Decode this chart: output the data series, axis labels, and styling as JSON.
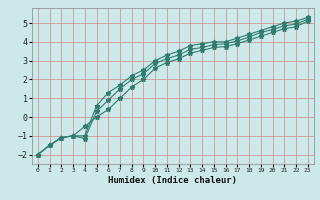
{
  "xlabel": "Humidex (Indice chaleur)",
  "bg_color": "#cce8e8",
  "grid_color": "#aacccc",
  "line_color": "#2e7d6e",
  "xlim": [
    -0.5,
    23.5
  ],
  "ylim": [
    -2.5,
    5.8
  ],
  "xticks": [
    0,
    1,
    2,
    3,
    4,
    5,
    6,
    7,
    8,
    9,
    10,
    11,
    12,
    13,
    14,
    15,
    16,
    17,
    18,
    19,
    20,
    21,
    22,
    23
  ],
  "yticks": [
    -2,
    -1,
    0,
    1,
    2,
    3,
    4,
    5
  ],
  "line1_x": [
    0,
    1,
    2,
    3,
    4,
    5,
    6,
    7,
    8,
    9,
    10,
    11,
    12,
    13,
    14,
    15,
    16,
    17,
    18,
    19,
    20,
    21,
    22,
    23
  ],
  "line1_y": [
    -2.0,
    -1.5,
    -1.1,
    -1.0,
    -1.0,
    0.6,
    1.3,
    1.7,
    2.2,
    2.5,
    3.0,
    3.3,
    3.5,
    3.8,
    3.9,
    4.0,
    4.0,
    4.2,
    4.4,
    4.6,
    4.8,
    5.0,
    5.1,
    5.3
  ],
  "line2_x": [
    0,
    1,
    2,
    3,
    4,
    5,
    6,
    7,
    8,
    9,
    10,
    11,
    12,
    13,
    14,
    15,
    16,
    17,
    18,
    19,
    20,
    21,
    22,
    23
  ],
  "line2_y": [
    -2.0,
    -1.5,
    -1.1,
    -1.0,
    -1.15,
    0.3,
    0.9,
    1.5,
    2.0,
    2.3,
    2.85,
    3.1,
    3.3,
    3.6,
    3.7,
    3.85,
    3.9,
    4.05,
    4.25,
    4.5,
    4.65,
    4.85,
    4.95,
    5.2
  ],
  "line3_x": [
    0,
    1,
    2,
    3,
    4,
    5,
    6,
    7,
    8,
    9,
    10,
    11,
    12,
    13,
    14,
    15,
    16,
    17,
    18,
    19,
    20,
    21,
    22,
    23
  ],
  "line3_y": [
    -2.0,
    -1.5,
    -1.1,
    -1.0,
    -0.5,
    0.0,
    0.4,
    1.0,
    1.6,
    2.0,
    2.6,
    2.9,
    3.1,
    3.4,
    3.55,
    3.7,
    3.75,
    3.9,
    4.1,
    4.3,
    4.5,
    4.7,
    4.8,
    5.1
  ]
}
